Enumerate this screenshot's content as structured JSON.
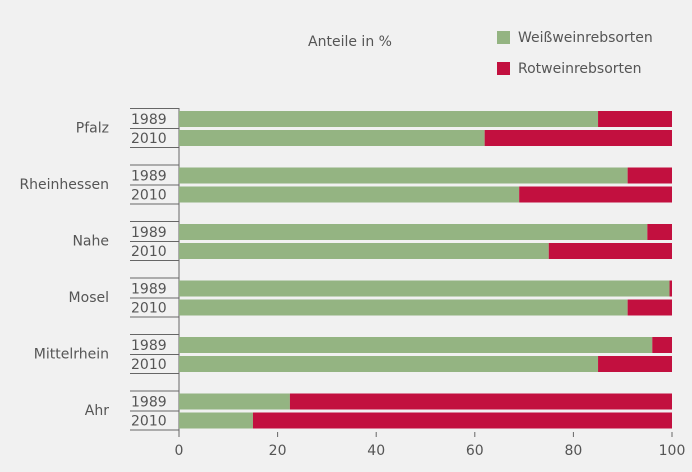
{
  "chart_data": {
    "type": "stacked-bar-h",
    "title": "Anteile in %",
    "groups": [
      "Pfalz",
      "Rheinhessen",
      "Nahe",
      "Mosel",
      "Mittelrhein",
      "Ahr"
    ],
    "categories": [
      "1989",
      "2010",
      "1989",
      "2010",
      "1989",
      "2010",
      "1989",
      "2010",
      "1989",
      "2010",
      "1989",
      "2010"
    ],
    "series": [
      {
        "name": "Weißweinrebsorten",
        "color": "#94b482",
        "values": [
          85,
          62,
          91,
          69,
          95,
          75,
          99.5,
          91,
          96,
          85,
          22.5,
          15
        ]
      },
      {
        "name": "Rotweinrebsorten",
        "color": "#c2103f",
        "values": [
          15,
          38,
          9,
          31,
          5,
          25,
          0.5,
          9,
          4,
          15,
          77.5,
          85
        ]
      }
    ],
    "xlim": [
      0,
      100
    ],
    "xticks": [
      0,
      20,
      40,
      60,
      80,
      100
    ]
  }
}
